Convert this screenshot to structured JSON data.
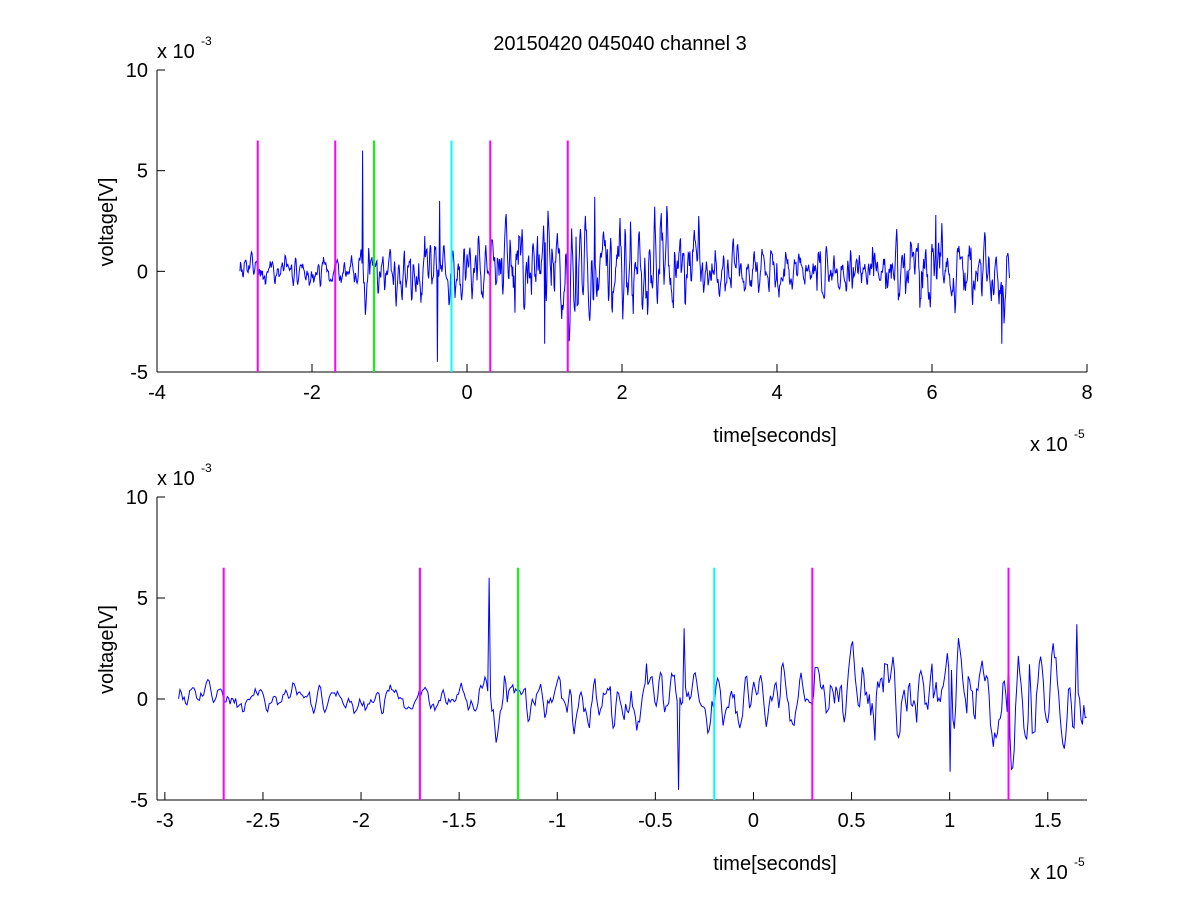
{
  "figure_title": "20150420 045040 channel 3",
  "colors": {
    "signal": "#0000ff",
    "marker_magenta": "#ff00ff",
    "marker_green": "#00ff00",
    "marker_cyan": "#00ffff",
    "axis": "#000000",
    "background": "#ffffff"
  },
  "chart_data": [
    {
      "type": "line",
      "title": "20150420 045040 channel 3",
      "xlabel": "time[seconds]",
      "ylabel": "voltage[V]",
      "x_exponent_label": "x 10",
      "x_exponent": "-5",
      "y_exponent_label": "x 10",
      "y_exponent": "-3",
      "xlim": [
        -4,
        8
      ],
      "ylim": [
        -5,
        10
      ],
      "x_ticks": [
        -4,
        -2,
        0,
        2,
        4,
        6,
        8
      ],
      "x_tick_labels": [
        "-4",
        "-2",
        "0",
        "2",
        "4",
        "6",
        "8"
      ],
      "y_ticks": [
        -5,
        0,
        5,
        10
      ],
      "y_tick_labels": [
        "-5",
        "0",
        "5",
        "10"
      ],
      "grid": false,
      "series": [
        {
          "x_range": [
            -2.93,
            7.0
          ],
          "visible_extrema": {
            "max": 6.0,
            "min": -4.5
          },
          "color": "#0000ff"
        }
      ],
      "markers": [
        {
          "x": -2.7,
          "color": "#ff00ff",
          "ymin": -5,
          "ymax": 6.5
        },
        {
          "x": -1.7,
          "color": "#ff00ff",
          "ymin": -5,
          "ymax": 6.5
        },
        {
          "x": -1.2,
          "color": "#00ff00",
          "ymin": -5,
          "ymax": 6.5
        },
        {
          "x": -0.2,
          "color": "#00ffff",
          "ymin": -5,
          "ymax": 6.5
        },
        {
          "x": 0.3,
          "color": "#ff00ff",
          "ymin": -5,
          "ymax": 6.5
        },
        {
          "x": 1.3,
          "color": "#ff00ff",
          "ymin": -5,
          "ymax": 6.5
        }
      ]
    },
    {
      "type": "line",
      "title": "",
      "xlabel": "time[seconds]",
      "ylabel": "voltage[V]",
      "x_exponent_label": "x 10",
      "x_exponent": "-5",
      "y_exponent_label": "x 10",
      "y_exponent": "-3",
      "xlim": [
        -3.04,
        1.7
      ],
      "ylim": [
        -5,
        10
      ],
      "x_ticks": [
        -3,
        -2.5,
        -2,
        -1.5,
        -1,
        -0.5,
        0,
        0.5,
        1,
        1.5
      ],
      "x_tick_labels": [
        "-3",
        "-2.5",
        "-2",
        "-1.5",
        "-1",
        "-0.5",
        "0",
        "0.5",
        "1",
        "1.5"
      ],
      "y_ticks": [
        -5,
        0,
        5,
        10
      ],
      "y_tick_labels": [
        "-5",
        "0",
        "5",
        "10"
      ],
      "grid": false,
      "series": [
        {
          "x_range": [
            -2.93,
            1.7
          ],
          "visible_extrema": {
            "max": 6.0,
            "min": -4.5
          },
          "color": "#0000ff"
        }
      ],
      "markers": [
        {
          "x": -2.7,
          "color": "#ff00ff",
          "ymin": -5,
          "ymax": 6.5
        },
        {
          "x": -1.7,
          "color": "#ff00ff",
          "ymin": -5,
          "ymax": 6.5
        },
        {
          "x": -1.2,
          "color": "#00ff00",
          "ymin": -5,
          "ymax": 6.5
        },
        {
          "x": -0.2,
          "color": "#00ffff",
          "ymin": -5,
          "ymax": 6.5
        },
        {
          "x": 0.3,
          "color": "#ff00ff",
          "ymin": -5,
          "ymax": 6.5
        },
        {
          "x": 1.3,
          "color": "#ff00ff",
          "ymin": -5,
          "ymax": 6.5
        }
      ]
    }
  ]
}
